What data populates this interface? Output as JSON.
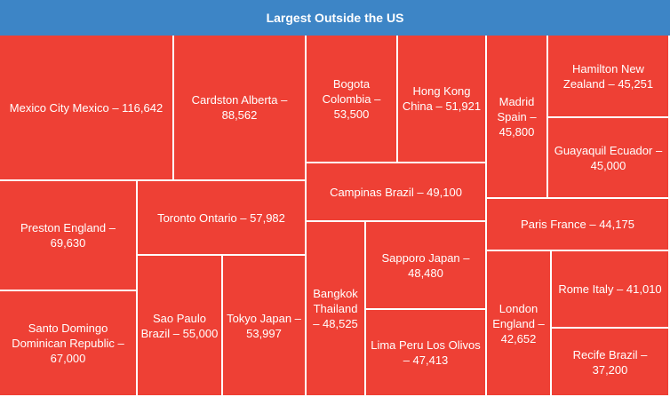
{
  "chart_data": {
    "type": "treemap",
    "title": "Largest Outside the US",
    "items": [
      {
        "label": "Mexico City Mexico – 116,642",
        "value": 116642
      },
      {
        "label": "Cardston Alberta – 88,562",
        "value": 88562
      },
      {
        "label": "Bogota Colombia – 53,500",
        "value": 53500
      },
      {
        "label": "Hong Kong China – 51,921",
        "value": 51921
      },
      {
        "label": "Madrid Spain – 45,800",
        "value": 45800
      },
      {
        "label": "Hamilton New Zealand – 45,251",
        "value": 45251
      },
      {
        "label": "Guayaquil Ecuador – 45,000",
        "value": 45000
      },
      {
        "label": "Campinas Brazil – 49,100",
        "value": 49100
      },
      {
        "label": "Paris France – 44,175",
        "value": 44175
      },
      {
        "label": "Preston England – 69,630",
        "value": 69630
      },
      {
        "label": "Toronto Ontario – 57,982",
        "value": 57982
      },
      {
        "label": "Sapporo Japan – 48,480",
        "value": 48480
      },
      {
        "label": "Bangkok Thailand – 48,525",
        "value": 48525
      },
      {
        "label": "Sao Paulo Brazil – 55,000",
        "value": 55000
      },
      {
        "label": "Tokyo Japan – 53,997",
        "value": 53997
      },
      {
        "label": "Santo Domingo Dominican Republic – 67,000",
        "value": 67000
      },
      {
        "label": "Lima Peru Los Olivos – 47,413",
        "value": 47413
      },
      {
        "label": "London England – 42,652",
        "value": 42652
      },
      {
        "label": "Rome Italy – 41,010",
        "value": 41010
      },
      {
        "label": "Recife Brazil – 37,200",
        "value": 37200
      }
    ]
  },
  "colors": {
    "tile": "#ee4035",
    "header": "#3d85c6"
  }
}
